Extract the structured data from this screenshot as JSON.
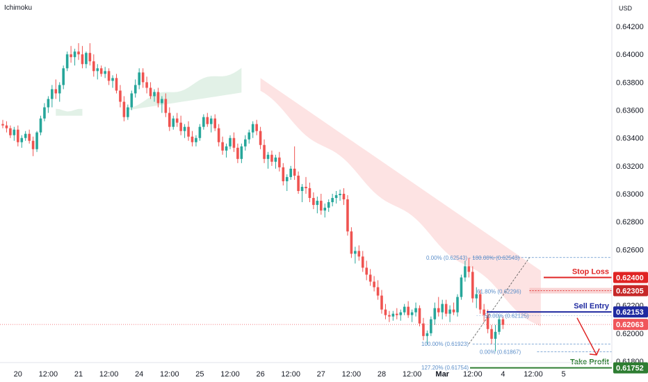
{
  "indicator_label": "Ichimoku",
  "currency_label": "USD",
  "colors": {
    "bull": "#26a69a",
    "bear": "#ef5350",
    "cloud_bear": "#fcdcdc",
    "cloud_bull": "#dff0e4",
    "stop": "#e02424",
    "entry": "#1f2aa0",
    "profit": "#2e7d32",
    "fib": "#5b8ec9",
    "current": "#f0565b"
  },
  "chart_data": {
    "type": "candlestick",
    "y_ticks": [
      "0.64200",
      "0.64000",
      "0.63800",
      "0.63600",
      "0.63400",
      "0.63200",
      "0.63000",
      "0.62800",
      "0.62600",
      "0.62200",
      "0.62000",
      "0.61800"
    ],
    "ylim": [
      0.6172,
      0.6432
    ],
    "x_ticks": [
      "20",
      "12:00",
      "21",
      "12:00",
      "24",
      "12:00",
      "25",
      "12:00",
      "26",
      "12:00",
      "27",
      "12:00",
      "28",
      "12:00",
      "Mar",
      "12:00",
      "4",
      "12:00",
      "5"
    ],
    "candles": [
      [
        0.635,
        0.6353,
        0.6347,
        0.6349
      ],
      [
        0.6349,
        0.6352,
        0.6344,
        0.6347
      ],
      [
        0.6347,
        0.6349,
        0.634,
        0.6342
      ],
      [
        0.6342,
        0.6348,
        0.6338,
        0.6346
      ],
      [
        0.6346,
        0.6349,
        0.6334,
        0.6337
      ],
      [
        0.6337,
        0.6342,
        0.6333,
        0.634
      ],
      [
        0.634,
        0.6345,
        0.6338,
        0.6343
      ],
      [
        0.6343,
        0.6346,
        0.6336,
        0.6338
      ],
      [
        0.6338,
        0.6341,
        0.6327,
        0.6332
      ],
      [
        0.6332,
        0.6345,
        0.633,
        0.6344
      ],
      [
        0.6344,
        0.6356,
        0.6342,
        0.6354
      ],
      [
        0.6354,
        0.6365,
        0.6352,
        0.6362
      ],
      [
        0.6362,
        0.637,
        0.6358,
        0.6368
      ],
      [
        0.6368,
        0.6378,
        0.6362,
        0.6375
      ],
      [
        0.6375,
        0.6382,
        0.6368,
        0.6372
      ],
      [
        0.6372,
        0.638,
        0.6366,
        0.6378
      ],
      [
        0.6378,
        0.6392,
        0.6375,
        0.639
      ],
      [
        0.639,
        0.6402,
        0.6388,
        0.64
      ],
      [
        0.64,
        0.6406,
        0.6394,
        0.6398
      ],
      [
        0.6398,
        0.6404,
        0.6392,
        0.6402
      ],
      [
        0.6402,
        0.6408,
        0.6396,
        0.64
      ],
      [
        0.64,
        0.6406,
        0.639,
        0.6393
      ],
      [
        0.6393,
        0.6402,
        0.639,
        0.6401
      ],
      [
        0.6401,
        0.6408,
        0.6392,
        0.6395
      ],
      [
        0.6395,
        0.64,
        0.6384,
        0.6388
      ],
      [
        0.6388,
        0.6393,
        0.6382,
        0.639
      ],
      [
        0.639,
        0.6392,
        0.6384,
        0.6386
      ],
      [
        0.6386,
        0.6391,
        0.6383,
        0.6388
      ],
      [
        0.6388,
        0.639,
        0.6378,
        0.6381
      ],
      [
        0.6381,
        0.6385,
        0.6376,
        0.6383
      ],
      [
        0.6383,
        0.6386,
        0.6372,
        0.6374
      ],
      [
        0.6374,
        0.6378,
        0.6362,
        0.6366
      ],
      [
        0.6366,
        0.637,
        0.6352,
        0.6355
      ],
      [
        0.6355,
        0.6364,
        0.6353,
        0.6362
      ],
      [
        0.6362,
        0.6374,
        0.636,
        0.6372
      ],
      [
        0.6372,
        0.6382,
        0.6369,
        0.6378
      ],
      [
        0.6378,
        0.639,
        0.6375,
        0.6387
      ],
      [
        0.6387,
        0.639,
        0.6376,
        0.638
      ],
      [
        0.638,
        0.6384,
        0.6372,
        0.6376
      ],
      [
        0.6376,
        0.638,
        0.6368,
        0.637
      ],
      [
        0.637,
        0.6375,
        0.6366,
        0.6373
      ],
      [
        0.6373,
        0.6376,
        0.6362,
        0.6365
      ],
      [
        0.6365,
        0.637,
        0.6358,
        0.6368
      ],
      [
        0.6368,
        0.6372,
        0.6355,
        0.6358
      ],
      [
        0.6358,
        0.6362,
        0.6345,
        0.6348
      ],
      [
        0.6348,
        0.6356,
        0.6346,
        0.6354
      ],
      [
        0.6354,
        0.6358,
        0.6348,
        0.6351
      ],
      [
        0.6351,
        0.6356,
        0.6342,
        0.6345
      ],
      [
        0.6345,
        0.635,
        0.634,
        0.6348
      ],
      [
        0.6348,
        0.6352,
        0.6338,
        0.6341
      ],
      [
        0.6341,
        0.6345,
        0.6334,
        0.6337
      ],
      [
        0.6337,
        0.6342,
        0.6334,
        0.634
      ],
      [
        0.634,
        0.635,
        0.6338,
        0.6348
      ],
      [
        0.6348,
        0.6357,
        0.6346,
        0.6355
      ],
      [
        0.6355,
        0.6358,
        0.6348,
        0.635
      ],
      [
        0.635,
        0.6356,
        0.6344,
        0.6354
      ],
      [
        0.6354,
        0.6357,
        0.6345,
        0.6347
      ],
      [
        0.6347,
        0.635,
        0.6334,
        0.6337
      ],
      [
        0.6337,
        0.6341,
        0.6328,
        0.6331
      ],
      [
        0.6331,
        0.6336,
        0.6326,
        0.6334
      ],
      [
        0.6334,
        0.6342,
        0.6332,
        0.634
      ],
      [
        0.634,
        0.6344,
        0.633,
        0.6333
      ],
      [
        0.6333,
        0.6336,
        0.6322,
        0.6325
      ],
      [
        0.6325,
        0.6336,
        0.6322,
        0.6334
      ],
      [
        0.6334,
        0.6342,
        0.6331,
        0.6339
      ],
      [
        0.6339,
        0.6346,
        0.6336,
        0.6344
      ],
      [
        0.6344,
        0.6352,
        0.634,
        0.635
      ],
      [
        0.635,
        0.6353,
        0.6342,
        0.6345
      ],
      [
        0.6345,
        0.6348,
        0.6332,
        0.6335
      ],
      [
        0.6335,
        0.6339,
        0.6322,
        0.6325
      ],
      [
        0.6325,
        0.633,
        0.6318,
        0.6328
      ],
      [
        0.6328,
        0.6331,
        0.632,
        0.6323
      ],
      [
        0.6323,
        0.6328,
        0.6318,
        0.6326
      ],
      [
        0.6326,
        0.633,
        0.6316,
        0.6319
      ],
      [
        0.6319,
        0.6322,
        0.6306,
        0.6309
      ],
      [
        0.6309,
        0.6314,
        0.6302,
        0.6312
      ],
      [
        0.6312,
        0.632,
        0.631,
        0.6318
      ],
      [
        0.6318,
        0.6334,
        0.631,
        0.6313
      ],
      [
        0.6313,
        0.6316,
        0.63,
        0.6302
      ],
      [
        0.6302,
        0.6307,
        0.6294,
        0.6305
      ],
      [
        0.6305,
        0.6312,
        0.63,
        0.6304
      ],
      [
        0.6304,
        0.6308,
        0.6294,
        0.6297
      ],
      [
        0.6297,
        0.6301,
        0.6289,
        0.6292
      ],
      [
        0.6292,
        0.6298,
        0.6286,
        0.6295
      ],
      [
        0.6295,
        0.63,
        0.6285,
        0.6288
      ],
      [
        0.6288,
        0.6293,
        0.6283,
        0.629
      ],
      [
        0.629,
        0.6296,
        0.6287,
        0.6294
      ],
      [
        0.6294,
        0.63,
        0.6291,
        0.6297
      ],
      [
        0.6297,
        0.6302,
        0.6293,
        0.6299
      ],
      [
        0.6299,
        0.6303,
        0.6295,
        0.63
      ],
      [
        0.63,
        0.6304,
        0.6292,
        0.6296
      ],
      [
        0.6296,
        0.6299,
        0.627,
        0.6273
      ],
      [
        0.6273,
        0.6276,
        0.6254,
        0.6257
      ],
      [
        0.6257,
        0.6262,
        0.625,
        0.6259
      ],
      [
        0.6259,
        0.6263,
        0.6252,
        0.6255
      ],
      [
        0.6255,
        0.6259,
        0.6244,
        0.6247
      ],
      [
        0.6247,
        0.6252,
        0.6238,
        0.6242
      ],
      [
        0.6242,
        0.6246,
        0.6234,
        0.6237
      ],
      [
        0.6237,
        0.6241,
        0.623,
        0.6233
      ],
      [
        0.6233,
        0.6238,
        0.6224,
        0.6227
      ],
      [
        0.6227,
        0.6231,
        0.6214,
        0.6217
      ],
      [
        0.6217,
        0.6221,
        0.621,
        0.6213
      ],
      [
        0.6213,
        0.6216,
        0.6208,
        0.6212
      ],
      [
        0.6212,
        0.6216,
        0.6209,
        0.6214
      ],
      [
        0.6214,
        0.6218,
        0.621,
        0.6213
      ],
      [
        0.6213,
        0.6217,
        0.6209,
        0.6215
      ],
      [
        0.6215,
        0.6221,
        0.6213,
        0.6219
      ],
      [
        0.6219,
        0.6223,
        0.6211,
        0.6213
      ],
      [
        0.6213,
        0.6217,
        0.6208,
        0.6215
      ],
      [
        0.6215,
        0.6222,
        0.6212,
        0.6218
      ],
      [
        0.6218,
        0.622,
        0.6205,
        0.6207
      ],
      [
        0.6207,
        0.6211,
        0.6195,
        0.6198
      ],
      [
        0.6198,
        0.6202,
        0.6192,
        0.62
      ],
      [
        0.62,
        0.6212,
        0.6198,
        0.621
      ],
      [
        0.621,
        0.6222,
        0.6206,
        0.6218
      ],
      [
        0.6218,
        0.6226,
        0.6212,
        0.6215
      ],
      [
        0.6215,
        0.6224,
        0.621,
        0.6221
      ],
      [
        0.6221,
        0.6224,
        0.6212,
        0.6214
      ],
      [
        0.6214,
        0.622,
        0.6208,
        0.6217
      ],
      [
        0.6217,
        0.6222,
        0.6213,
        0.6215
      ],
      [
        0.6215,
        0.6228,
        0.6212,
        0.6226
      ],
      [
        0.6226,
        0.6242,
        0.6224,
        0.624
      ],
      [
        0.624,
        0.6252,
        0.6237,
        0.6248
      ],
      [
        0.6248,
        0.6254,
        0.624,
        0.6244
      ],
      [
        0.6244,
        0.6248,
        0.6222,
        0.6225
      ],
      [
        0.6225,
        0.6233,
        0.6218,
        0.6228
      ],
      [
        0.6228,
        0.6231,
        0.6214,
        0.6217
      ],
      [
        0.6217,
        0.6221,
        0.6208,
        0.6213
      ],
      [
        0.6213,
        0.6217,
        0.62,
        0.6203
      ],
      [
        0.6203,
        0.6206,
        0.6192,
        0.6196
      ],
      [
        0.6196,
        0.6206,
        0.6187,
        0.6201
      ],
      [
        0.6201,
        0.6212,
        0.6199,
        0.621
      ],
      [
        0.621,
        0.6212,
        0.6203,
        0.6206
      ]
    ],
    "x_tick_candle_index": [
      4,
      12,
      20,
      28,
      36,
      44,
      52,
      60,
      68,
      76,
      84,
      92,
      100,
      108,
      116,
      124,
      132,
      140,
      148
    ],
    "fib_upper": {
      "anchors": [
        "0.00% (0.62543)",
        "100.00% (0.62543)",
        "61.80% (0.62296)",
        "50.00% (0.62125)",
        "100.00% (0.61923)"
      ],
      "levels": [
        0.62543,
        0.62296,
        0.62125,
        0.61923
      ]
    },
    "fib_lower": {
      "labels": [
        "0.00% (0.61867)",
        "127.20% (0.61754)"
      ],
      "levels": [
        0.61867,
        0.61754
      ]
    },
    "levels": {
      "stop_loss": {
        "label": "Stop Loss",
        "price": 0.624,
        "price_text": "0.62400"
      },
      "resistance": {
        "price": 0.62305,
        "price_text": "0.62305"
      },
      "sell_entry": {
        "label": "Sell Entry",
        "price": 0.62153,
        "price_text": "0.62153"
      },
      "current": {
        "price": 0.62063,
        "price_text": "0.62063"
      },
      "take_profit": {
        "label": "Take Profit",
        "price": 0.61752,
        "price_text": "0.61752"
      }
    }
  }
}
